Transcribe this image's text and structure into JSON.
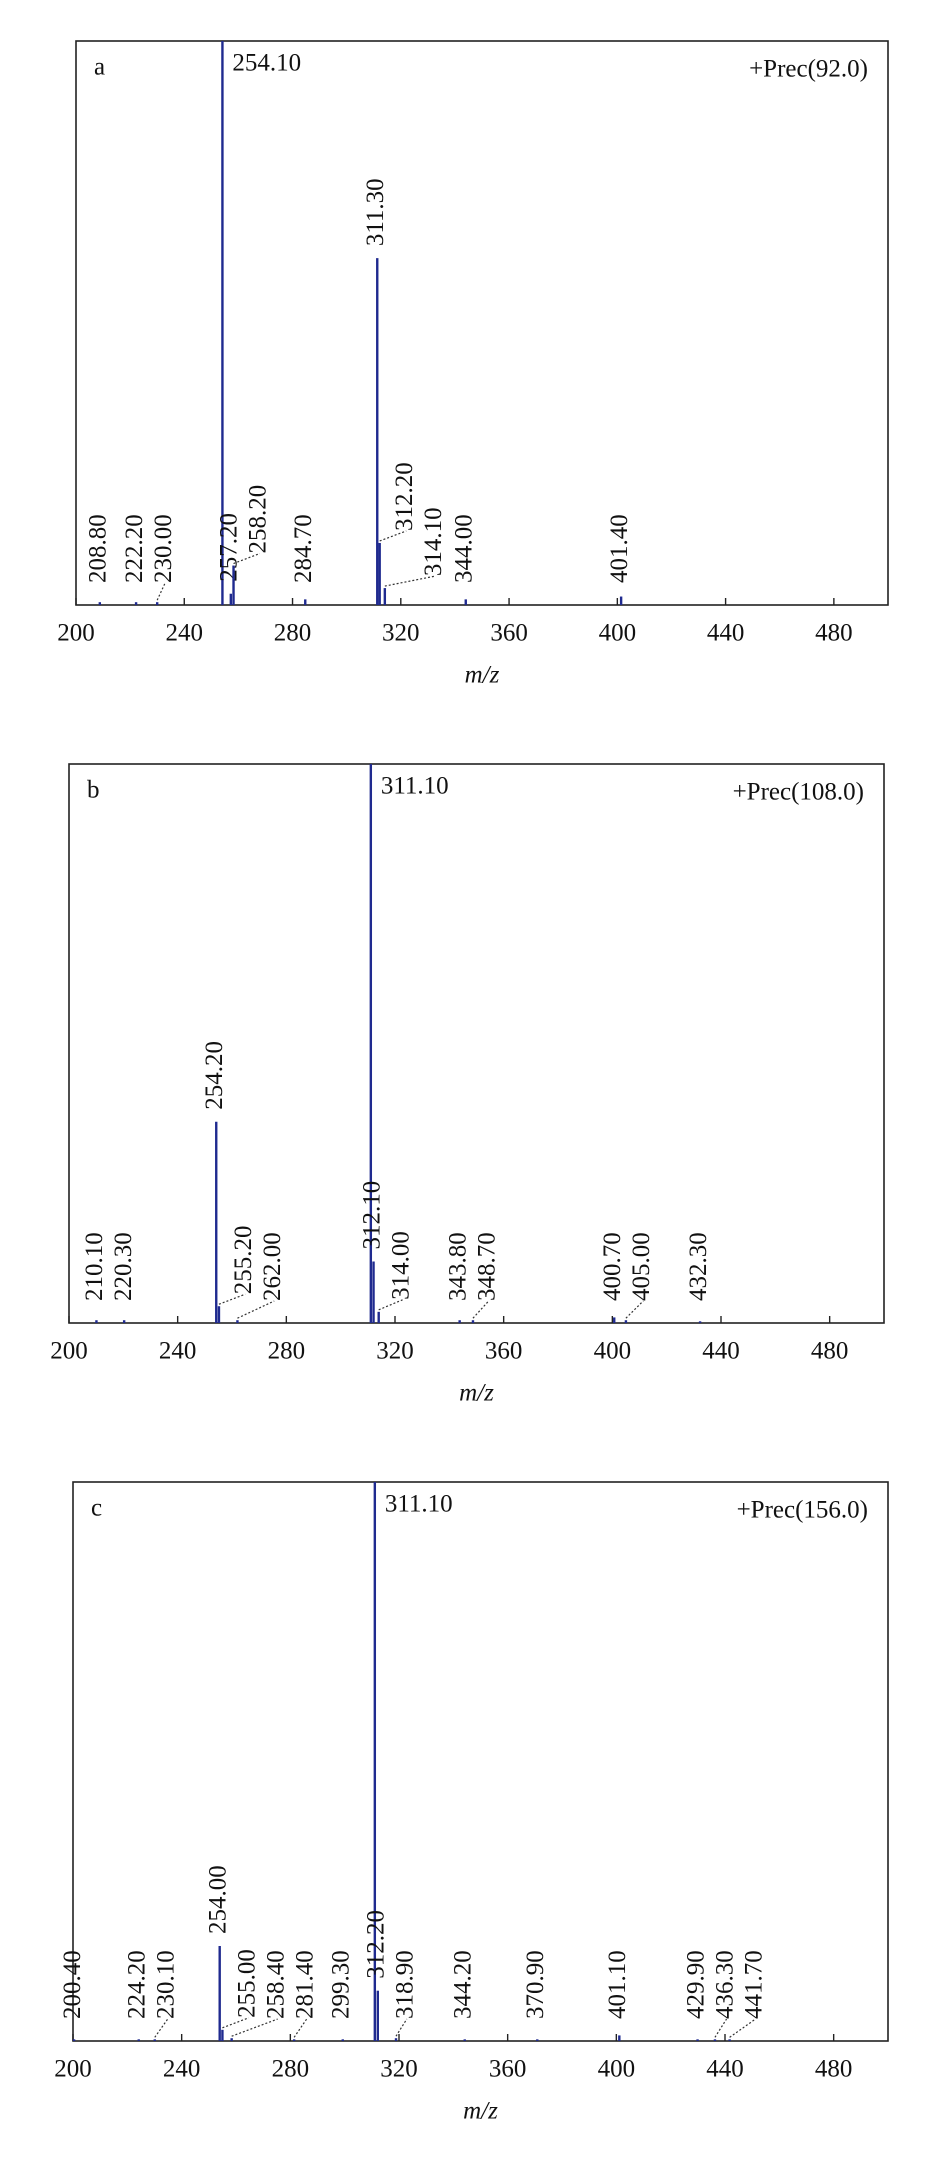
{
  "chart_data": [
    {
      "type": "bar",
      "label": "a",
      "annotation": "+Prec(92.0)",
      "xlabel": "m/z",
      "color": "#1f2a8f",
      "x": [
        208.8,
        222.2,
        230.0,
        254.1,
        257.2,
        258.2,
        284.7,
        311.3,
        312.2,
        314.1,
        344.0,
        401.4
      ],
      "x_labels": [
        "208.80",
        "222.20",
        "230.00",
        "254.10",
        "257.20",
        "258.20",
        "284.70",
        "311.30",
        "312.20",
        "314.10",
        "344.00",
        "401.40"
      ],
      "values": [
        0.5,
        0.5,
        0.5,
        100,
        2,
        7,
        1,
        61.5,
        11,
        3,
        1,
        1.5
      ],
      "xlim": [
        200,
        500
      ],
      "xticks": [
        200,
        240,
        280,
        320,
        360,
        400,
        440,
        480
      ]
    },
    {
      "type": "bar",
      "label": "b",
      "annotation": "+Prec(108.0)",
      "xlabel": "m/z",
      "color": "#1f2a8f",
      "x": [
        210.1,
        220.3,
        254.2,
        255.2,
        262.0,
        311.1,
        312.1,
        314.0,
        343.8,
        348.7,
        400.7,
        405.0,
        432.3
      ],
      "x_labels": [
        "210.10",
        "220.30",
        "254.20",
        "255.20",
        "262.00",
        "311.10",
        "312.10",
        "314.00",
        "343.80",
        "348.70",
        "400.70",
        "405.00",
        "432.30"
      ],
      "values": [
        0.5,
        0.5,
        36,
        3,
        0.5,
        100,
        11,
        2,
        0.5,
        0.5,
        1,
        0.5,
        0.3
      ],
      "xlim": [
        200,
        500
      ],
      "xticks": [
        200,
        240,
        280,
        320,
        360,
        400,
        440,
        480
      ]
    },
    {
      "type": "bar",
      "label": "c",
      "annotation": "+Prec(156.0)",
      "xlabel": "m/z",
      "color": "#1f2a8f",
      "x": [
        200.4,
        224.2,
        230.1,
        254.0,
        255.0,
        258.4,
        281.4,
        299.3,
        311.1,
        312.2,
        318.9,
        344.2,
        370.9,
        401.1,
        429.9,
        436.3,
        441.7
      ],
      "x_labels": [
        "200.40",
        "224.20",
        "230.10",
        "254.00",
        "255.00",
        "258.40",
        "281.40",
        "299.30",
        "311.10",
        "312.20",
        "318.90",
        "344.20",
        "370.90",
        "401.10",
        "429.90",
        "436.30",
        "441.70"
      ],
      "values": [
        0.3,
        0.3,
        0.3,
        17,
        2,
        0.5,
        0.3,
        0.3,
        100,
        9,
        0.5,
        0.3,
        0.3,
        1,
        0.3,
        0.3,
        0.3
      ],
      "xlim": [
        200,
        500
      ],
      "xticks": [
        200,
        240,
        280,
        320,
        360,
        400,
        440,
        480
      ]
    }
  ]
}
